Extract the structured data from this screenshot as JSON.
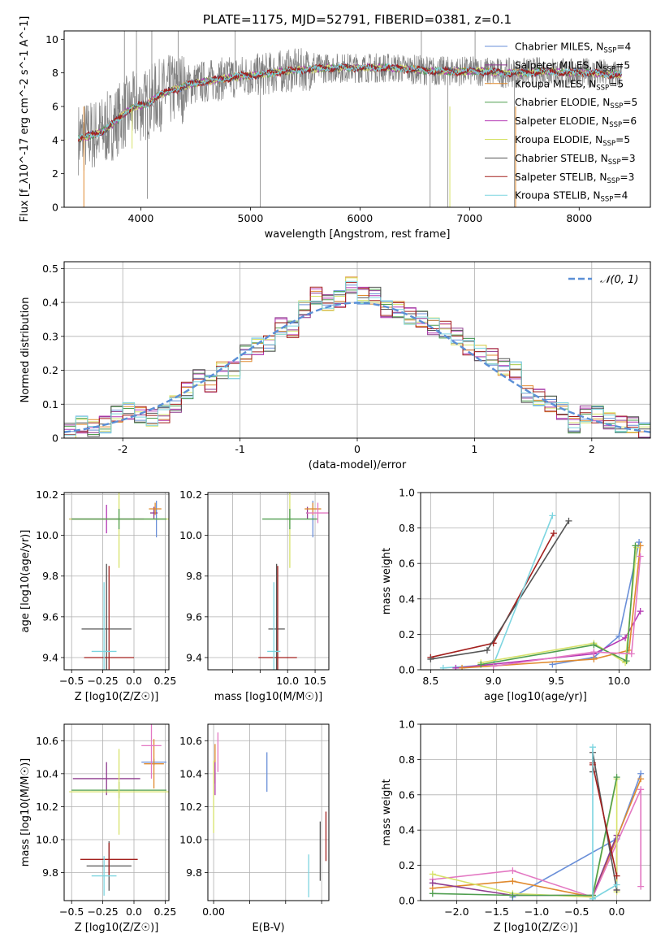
{
  "chart_data": [
    {
      "type": "line",
      "title": "PLATE=1175, MJD=52791, FIBERID=0381, z=0.1",
      "xlabel": "wavelength [Angstrom, rest frame]",
      "ylabel": "Flux [f_λ10^-17 erg cm^-2 s^-1 A^-1]",
      "xlim": [
        3300,
        8650
      ],
      "ylim": [
        0,
        10.5
      ],
      "xticks": [
        4000,
        5000,
        6000,
        7000,
        8000
      ],
      "yticks": [
        0,
        2,
        4,
        6,
        8,
        10
      ],
      "legend_position": "right",
      "observed_color": "#808080",
      "observed_spectrum": {
        "x": [
          3450,
          3550,
          3650,
          3750,
          3850,
          3950,
          4050,
          4150,
          4250,
          4350,
          4500,
          4700,
          4900,
          5100,
          5300,
          5500,
          5700,
          5900,
          6100,
          6300,
          6500,
          6700,
          6900,
          7100,
          7300,
          7500,
          7700,
          7900,
          8100,
          8300
        ],
        "y": [
          4.1,
          4.3,
          4.5,
          5.0,
          5.6,
          6.0,
          6.1,
          6.6,
          6.9,
          7.1,
          7.4,
          7.6,
          7.8,
          7.9,
          8.1,
          8.2,
          8.3,
          8.3,
          8.3,
          8.3,
          8.2,
          8.1,
          8.1,
          8.1,
          8.0,
          8.0,
          8.1,
          8.0,
          8.0,
          7.9
        ]
      },
      "model_continuum": {
        "x": [
          3450,
          3550,
          3650,
          3750,
          3850,
          3950,
          4050,
          4150,
          4250,
          4350,
          4500,
          4700,
          4900,
          5100,
          5300,
          5500,
          5700,
          5900,
          6100,
          6300,
          6500,
          6700,
          6900,
          7100,
          7300,
          7500,
          7700,
          7900,
          8100,
          8300
        ],
        "y": [
          4.1,
          4.3,
          4.5,
          5.0,
          5.6,
          6.0,
          6.1,
          6.6,
          6.9,
          7.1,
          7.4,
          7.6,
          7.8,
          7.9,
          8.1,
          8.2,
          8.3,
          8.3,
          8.3,
          8.3,
          8.2,
          8.1,
          8.1,
          8.1,
          8.0,
          8.0,
          8.1,
          8.0,
          8.0,
          7.9
        ]
      },
      "series": [
        {
          "name": "Chabrier MILES",
          "nssp": "4",
          "color": "#6a8fd8"
        },
        {
          "name": "Salpeter MILES",
          "nssp": "5",
          "color": "#8e3a8e"
        },
        {
          "name": "Kroupa MILES",
          "nssp": "5",
          "color": "#e08a2e"
        },
        {
          "name": "Chabrier ELODIE",
          "nssp": "5",
          "color": "#4f9e4f"
        },
        {
          "name": "Salpeter ELODIE",
          "nssp": "6",
          "color": "#b438b4"
        },
        {
          "name": "Kroupa ELODIE",
          "nssp": "5",
          "color": "#d7e26a"
        },
        {
          "name": "Chabrier STELIB",
          "nssp": "3",
          "color": "#555555"
        },
        {
          "name": "Salpeter STELIB",
          "nssp": "3",
          "color": "#a3201e"
        },
        {
          "name": "Kroupa STELIB",
          "nssp": "4",
          "color": "#7dd5e0"
        }
      ]
    },
    {
      "type": "line",
      "xlabel": "(data-model)/error",
      "ylabel": "Normed distribution",
      "xlim": [
        -2.5,
        2.5
      ],
      "ylim": [
        0,
        0.52
      ],
      "xticks": [
        -2,
        -1,
        0,
        1,
        2
      ],
      "yticks": [
        0.0,
        0.1,
        0.2,
        0.3,
        0.4,
        0.5
      ],
      "grid": true,
      "legend_position": "top-right",
      "reference": {
        "name": "𝒩(0, 1)",
        "color": "#5b8fd6"
      },
      "histogram_bin_width": 0.1,
      "histogram_centers": [
        -2.45,
        -2.35,
        -2.25,
        -2.15,
        -2.05,
        -1.95,
        -1.85,
        -1.75,
        -1.65,
        -1.55,
        -1.45,
        -1.35,
        -1.25,
        -1.15,
        -1.05,
        -0.95,
        -0.85,
        -0.75,
        -0.65,
        -0.55,
        -0.45,
        -0.35,
        -0.25,
        -0.15,
        -0.05,
        0.05,
        0.15,
        0.25,
        0.35,
        0.45,
        0.55,
        0.65,
        0.75,
        0.85,
        0.95,
        1.05,
        1.15,
        1.25,
        1.35,
        1.45,
        1.55,
        1.65,
        1.75,
        1.85,
        1.95,
        2.05,
        2.15,
        2.25,
        2.35,
        2.45
      ],
      "histogram_values": [
        0.02,
        0.04,
        0.03,
        0.04,
        0.07,
        0.08,
        0.07,
        0.06,
        0.07,
        0.1,
        0.14,
        0.18,
        0.16,
        0.2,
        0.2,
        0.25,
        0.27,
        0.28,
        0.33,
        0.32,
        0.38,
        0.42,
        0.4,
        0.41,
        0.45,
        0.42,
        0.42,
        0.38,
        0.38,
        0.36,
        0.35,
        0.33,
        0.32,
        0.3,
        0.27,
        0.25,
        0.24,
        0.21,
        0.2,
        0.13,
        0.12,
        0.1,
        0.08,
        0.04,
        0.07,
        0.07,
        0.05,
        0.04,
        0.04,
        0.02
      ]
    },
    {
      "type": "scatter",
      "xlabel": "Z [log10(Z/Z☉)]",
      "ylabel": "age  [log10(age/yr)]",
      "xlim": [
        -0.56,
        0.28
      ],
      "ylim": [
        9.34,
        10.21
      ],
      "xticks": [
        -0.5,
        -0.25,
        0.0,
        0.25
      ],
      "xticklabels": [
        "−0.5",
        "−0.25",
        "0.0",
        "0.25"
      ],
      "yticks": [
        9.4,
        9.6,
        9.8,
        10.0,
        10.2
      ],
      "yticklabels": [
        "9.4",
        "9.6",
        "9.8",
        "10.0",
        "10.2"
      ],
      "grid": true,
      "errorbars": [
        {
          "color": "#6a8fd8",
          "x": 0.18,
          "y": 10.08,
          "xerr": 0.02,
          "yerr": 0.09
        },
        {
          "color": "#8e3a8e",
          "x": 0.16,
          "y": 10.11,
          "xerr": 0.03,
          "yerr": 0.03
        },
        {
          "color": "#e08a2e",
          "x": 0.17,
          "y": 10.13,
          "xerr": 0.05,
          "yerr": 0.03
        },
        {
          "color": "#b438b4",
          "x": -0.22,
          "y": 10.08,
          "xerr": 0.3,
          "yerr": 0.07
        },
        {
          "color": "#d7e26a",
          "x": -0.12,
          "y": 10.08,
          "xerr": 0.4,
          "yerr": 0.24
        },
        {
          "color": "#4f9e4f",
          "x": -0.12,
          "y": 10.08,
          "xerr": 0.38,
          "yerr": 0.05
        },
        {
          "color": "#555555",
          "x": -0.22,
          "y": 9.54,
          "xerr": 0.2,
          "yerr": 0.32
        },
        {
          "color": "#a3201e",
          "x": -0.2,
          "y": 9.4,
          "xerr": 0.2,
          "yerr": 0.45
        },
        {
          "color": "#7dd5e0",
          "x": -0.24,
          "y": 9.43,
          "xerr": 0.1,
          "yerr": 0.34
        }
      ]
    },
    {
      "type": "scatter",
      "xlabel": "mass [log10(M/M☉)]",
      "xlim": [
        8.55,
        10.75
      ],
      "ylim": [
        9.34,
        10.21
      ],
      "xticks": [
        9.0,
        9.5,
        10.0,
        10.5
      ],
      "xticklabels": [
        "",
        "",
        "10.0",
        "10.5"
      ],
      "yticks": [
        9.4,
        9.6,
        9.8,
        10.0,
        10.2
      ],
      "yticklabels": [
        "9.4",
        "9.6",
        "9.8",
        "10.0",
        "10.2"
      ],
      "grid": true,
      "errorbars": [
        {
          "color": "#6a8fd8",
          "x": 10.46,
          "y": 10.08,
          "xerr": 0.02,
          "yerr": 0.09
        },
        {
          "color": "#8e3a8e",
          "x": 10.36,
          "y": 10.11,
          "xerr": 0.02,
          "yerr": 0.03
        },
        {
          "color": "#e08a2e",
          "x": 10.46,
          "y": 10.13,
          "xerr": 0.15,
          "yerr": 0.03
        },
        {
          "color": "#e377c2",
          "x": 10.55,
          "y": 10.11,
          "xerr": 0.2,
          "yerr": 0.05
        },
        {
          "color": "#d7e26a",
          "x": 10.04,
          "y": 10.08,
          "xerr": 0.05,
          "yerr": 0.24
        },
        {
          "color": "#4f9e4f",
          "x": 10.04,
          "y": 10.08,
          "xerr": 0.5,
          "yerr": 0.05
        },
        {
          "color": "#555555",
          "x": 9.8,
          "y": 9.54,
          "xerr": 0.15,
          "yerr": 0.32
        },
        {
          "color": "#a3201e",
          "x": 9.82,
          "y": 9.4,
          "xerr": 0.35,
          "yerr": 0.45
        },
        {
          "color": "#7dd5e0",
          "x": 9.75,
          "y": 9.43,
          "xerr": 0.12,
          "yerr": 0.34
        }
      ]
    },
    {
      "type": "line",
      "xlabel": "age  [log10(age/yr)]",
      "ylabel": "mass weight",
      "xlim": [
        8.42,
        10.25
      ],
      "ylim": [
        0.0,
        1.0
      ],
      "xticks": [
        8.5,
        9.0,
        9.5,
        10.0
      ],
      "xticklabels": [
        "8.5",
        "9.0",
        "9.5",
        "10.0"
      ],
      "yticks": [
        0.0,
        0.2,
        0.4,
        0.6,
        0.8,
        1.0
      ],
      "yticklabels": [
        "0.0",
        "0.2",
        "0.4",
        "0.6",
        "0.8",
        "1.0"
      ],
      "grid": true,
      "series": [
        {
          "color": "#a3201e",
          "x": [
            8.5,
            9.0,
            9.48
          ],
          "y": [
            0.07,
            0.15,
            0.77
          ]
        },
        {
          "color": "#555555",
          "x": [
            8.5,
            8.95,
            9.6
          ],
          "y": [
            0.06,
            0.11,
            0.84
          ]
        },
        {
          "color": "#7dd5e0",
          "x": [
            8.6,
            9.0,
            9.47
          ],
          "y": [
            0.01,
            0.03,
            0.87
          ]
        },
        {
          "color": "#6a8fd8",
          "x": [
            9.47,
            9.8,
            10.0,
            10.16
          ],
          "y": [
            0.03,
            0.07,
            0.19,
            0.72
          ]
        },
        {
          "color": "#b438b4",
          "x": [
            8.7,
            9.8,
            10.05,
            10.17
          ],
          "y": [
            0.01,
            0.09,
            0.18,
            0.33
          ]
        },
        {
          "color": "#e08a2e",
          "x": [
            8.75,
            9.8,
            10.08,
            10.17
          ],
          "y": [
            0.01,
            0.06,
            0.11,
            0.7
          ]
        },
        {
          "color": "#d7e26a",
          "x": [
            8.9,
            9.8,
            10.05,
            10.14
          ],
          "y": [
            0.04,
            0.15,
            0.04,
            0.69
          ]
        },
        {
          "color": "#4f9e4f",
          "x": [
            8.9,
            9.8,
            10.06,
            10.13
          ],
          "y": [
            0.03,
            0.14,
            0.05,
            0.7
          ]
        },
        {
          "color": "#e377c2",
          "x": [
            9.0,
            9.8,
            10.1,
            10.17
          ],
          "y": [
            0.02,
            0.1,
            0.09,
            0.64
          ]
        }
      ]
    },
    {
      "type": "scatter",
      "xlabel": "Z [log10(Z/Z☉)]",
      "ylabel": "mass [log10(M/M☉)]",
      "xlim": [
        -0.56,
        0.28
      ],
      "ylim": [
        9.63,
        10.7
      ],
      "xticks": [
        -0.5,
        -0.25,
        0.0,
        0.25
      ],
      "xticklabels": [
        "−0.5",
        "−0.25",
        "0.0",
        "0.25"
      ],
      "yticks": [
        9.8,
        10.0,
        10.2,
        10.4,
        10.6
      ],
      "yticklabels": [
        "9.8",
        "10.0",
        "10.2",
        "10.4",
        "10.6"
      ],
      "grid": true,
      "errorbars": [
        {
          "color": "#6a8fd8",
          "x": 0.16,
          "y": 10.47,
          "xerr": 0.1,
          "yerr": 0.02
        },
        {
          "color": "#e08a2e",
          "x": 0.16,
          "y": 10.46,
          "xerr": 0.08,
          "yerr": 0.15
        },
        {
          "color": "#e377c2",
          "x": 0.14,
          "y": 10.57,
          "xerr": 0.08,
          "yerr": 0.2
        },
        {
          "color": "#8e3a8e",
          "x": -0.22,
          "y": 10.37,
          "xerr": 0.27,
          "yerr": 0.1
        },
        {
          "color": "#4f9e4f",
          "x": -0.12,
          "y": 10.3,
          "xerr": 0.38,
          "yerr": 0.05
        },
        {
          "color": "#d7e26a",
          "x": -0.12,
          "y": 10.29,
          "xerr": 0.4,
          "yerr": 0.26
        },
        {
          "color": "#555555",
          "x": -0.2,
          "y": 9.84,
          "xerr": 0.18,
          "yerr": 0.15
        },
        {
          "color": "#a3201e",
          "x": -0.2,
          "y": 9.88,
          "xerr": 0.23,
          "yerr": 0.1
        },
        {
          "color": "#7dd5e0",
          "x": -0.24,
          "y": 9.78,
          "xerr": 0.1,
          "yerr": 0.12
        }
      ]
    },
    {
      "type": "scatter",
      "xlabel": "E(B-V)",
      "xlim": [
        -0.004,
        0.08
      ],
      "ylim": [
        9.63,
        10.7
      ],
      "xticks": [
        0.0,
        0.025,
        0.05,
        0.075
      ],
      "xticklabels": [
        "0.00",
        "",
        "",
        ""
      ],
      "yticks": [
        9.8,
        10.0,
        10.2,
        10.4,
        10.6
      ],
      "yticklabels": [
        "9.8",
        "10.0",
        "10.2",
        "10.4",
        "10.6"
      ],
      "grid": true,
      "errorbars": [
        {
          "color": "#e377c2",
          "x": 0.003,
          "y": 10.53,
          "yerr": 0.12
        },
        {
          "color": "#e08a2e",
          "x": 0.001,
          "y": 10.46,
          "yerr": 0.12
        },
        {
          "color": "#b438b4",
          "x": 0.001,
          "y": 10.37,
          "yerr": 0.1
        },
        {
          "color": "#d7e26a",
          "x": 0.0,
          "y": 10.26,
          "yerr": 0.22
        },
        {
          "color": "#6a8fd8",
          "x": 0.037,
          "y": 10.41,
          "yerr": 0.12
        },
        {
          "color": "#7dd5e0",
          "x": 0.066,
          "y": 9.78,
          "yerr": 0.13
        },
        {
          "color": "#555555",
          "x": 0.074,
          "y": 9.93,
          "yerr": 0.18
        },
        {
          "color": "#a3201e",
          "x": 0.078,
          "y": 10.02,
          "yerr": 0.15
        }
      ]
    },
    {
      "type": "line",
      "xlabel": "Z [log10(Z/Z☉)]",
      "ylabel": "mass weight",
      "xlim": [
        -2.45,
        0.42
      ],
      "ylim": [
        0.0,
        1.0
      ],
      "xticks": [
        -2.0,
        -1.5,
        -1.0,
        -0.5,
        0.0
      ],
      "xticklabels": [
        "−2.0",
        "−1.5",
        "−1.0",
        "−0.5",
        "0.0"
      ],
      "yticks": [
        0.0,
        0.2,
        0.4,
        0.6,
        0.8,
        1.0
      ],
      "yticklabels": [
        "0.0",
        "0.2",
        "0.4",
        "0.6",
        "0.8",
        "1.0"
      ],
      "grid": true,
      "series": [
        {
          "color": "#6a8fd8",
          "x": [
            -1.3,
            0.0,
            0.3
          ],
          "y": [
            0.02,
            0.35,
            0.72
          ]
        },
        {
          "color": "#e08a2e",
          "x": [
            -2.3,
            -1.3,
            -0.3,
            0.3
          ],
          "y": [
            0.07,
            0.11,
            0.02,
            0.69
          ]
        },
        {
          "color": "#e377c2",
          "x": [
            -2.3,
            -1.3,
            -0.3,
            0.3,
            0.3
          ],
          "y": [
            0.12,
            0.17,
            0.02,
            0.63,
            0.08
          ]
        },
        {
          "color": "#8e3a8e",
          "x": [
            -2.3,
            -1.3,
            -0.3,
            0.0,
            0.0
          ],
          "y": [
            0.1,
            0.03,
            0.03,
            0.37,
            0.06
          ]
        },
        {
          "color": "#d7e26a",
          "x": [
            -2.3,
            -1.3,
            -0.3,
            0.0,
            0.0
          ],
          "y": [
            0.15,
            0.04,
            0.02,
            0.69,
            0.05
          ]
        },
        {
          "color": "#4f9e4f",
          "x": [
            -2.3,
            -1.3,
            -0.3,
            0.0
          ],
          "y": [
            0.04,
            0.03,
            0.03,
            0.7
          ]
        },
        {
          "color": "#555555",
          "x": [
            -0.3,
            -0.3,
            0.0
          ],
          "y": [
            0.73,
            0.84,
            0.06
          ]
        },
        {
          "color": "#a3201e",
          "x": [
            -0.3,
            -0.3,
            0.0
          ],
          "y": [
            0.78,
            0.77,
            0.14
          ]
        },
        {
          "color": "#7dd5e0",
          "x": [
            -0.3,
            -0.3,
            0.0
          ],
          "y": [
            0.87,
            0.01,
            0.09
          ]
        }
      ]
    }
  ]
}
